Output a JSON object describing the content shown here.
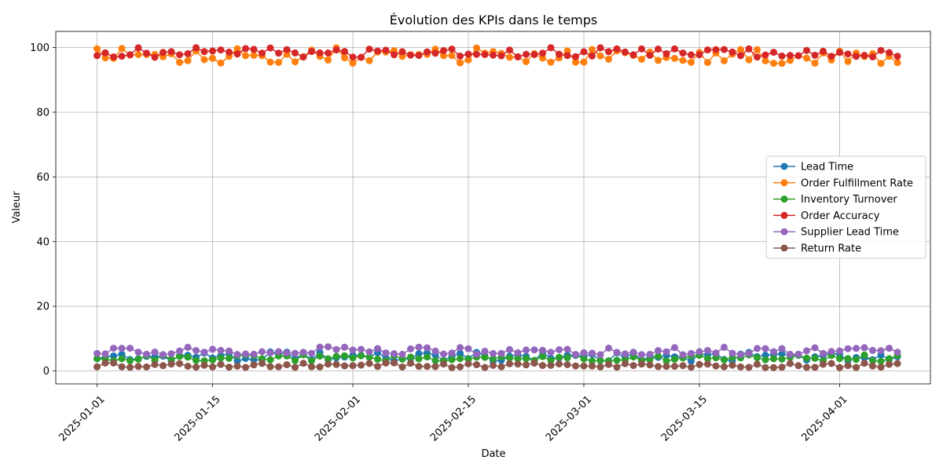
{
  "chart_data": {
    "type": "line",
    "title": "Évolution des KPIs dans le temps",
    "xlabel": "Date",
    "ylabel": "Valeur",
    "x_start": "2025-01-01",
    "x_end": "2025-04-08",
    "xlim": [
      "2024-12-27",
      "2025-04-12"
    ],
    "ylim": [
      -4,
      105
    ],
    "grid": true,
    "legend_position": "center-right",
    "x_ticks": [
      "2025-01-01",
      "2025-01-15",
      "2025-02-01",
      "2025-02-15",
      "2025-03-01",
      "2025-03-15",
      "2025-04-01"
    ],
    "y_ticks": [
      0,
      20,
      40,
      60,
      80,
      100
    ],
    "series": [
      {
        "name": "Lead Time",
        "color": "#1f77b4",
        "values_min": 3.0,
        "values_max": 6.0
      },
      {
        "name": "Order Fulfillment Rate",
        "color": "#ff7f0e",
        "values_min": 95.0,
        "values_max": 100.0
      },
      {
        "name": "Inventory Turnover",
        "color": "#2ca02c",
        "values_min": 3.0,
        "values_max": 5.0
      },
      {
        "name": "Order Accuracy",
        "color": "#d62728",
        "values_min": 97.0,
        "values_max": 100.0
      },
      {
        "name": "Supplier Lead Time",
        "color": "#9467bd",
        "values_min": 5.0,
        "values_max": 7.5
      },
      {
        "name": "Return Rate",
        "color": "#8c564b",
        "values_min": 1.0,
        "values_max": 2.5
      }
    ]
  }
}
